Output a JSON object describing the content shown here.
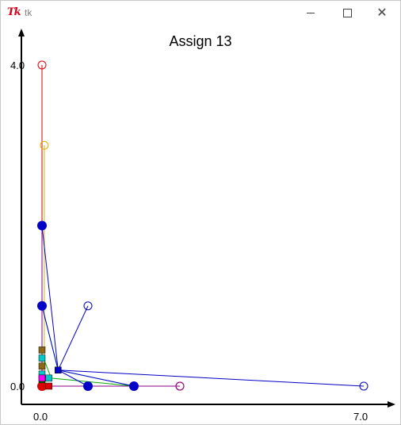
{
  "window": {
    "title": "tk",
    "app_icon": "tk-feather-icon"
  },
  "chart_data": {
    "type": "scatter",
    "title": "Assign 13",
    "xlim": [
      0.0,
      7.0
    ],
    "ylim": [
      0.0,
      4.0
    ],
    "x_ticks": [
      "0.0",
      "7.0"
    ],
    "y_ticks": [
      "4.0",
      "0.0"
    ],
    "series": [
      {
        "color": "#dc0000",
        "points": [
          [
            0.0,
            4.0
          ],
          [
            0.0,
            0.0
          ],
          [
            3.0,
            0.0
          ]
        ]
      },
      {
        "color": "#e0b000",
        "points": [
          [
            0.05,
            3.0
          ],
          [
            0.05,
            0.0
          ],
          [
            3.0,
            0.0
          ]
        ]
      },
      {
        "color": "#8b008b",
        "points": [
          [
            0.0,
            2.0
          ],
          [
            0.0,
            0.0
          ],
          [
            3.0,
            0.0
          ]
        ]
      },
      {
        "color": "#00b0b0",
        "points": [
          [
            0.0,
            1.0
          ],
          [
            0.35,
            0.2
          ],
          [
            2.0,
            0.0
          ]
        ]
      },
      {
        "color": "#00aa00",
        "points": [
          [
            0.0,
            0.4
          ],
          [
            0.2,
            0.1
          ],
          [
            2.0,
            0.0
          ]
        ]
      },
      {
        "color": "#0000c8",
        "points": [
          [
            0.0,
            2.0
          ],
          [
            0.35,
            0.2
          ],
          [
            7.0,
            0.0
          ]
        ]
      },
      {
        "color": "#0000c8",
        "points": [
          [
            1.0,
            1.0
          ],
          [
            0.35,
            0.2
          ],
          [
            1.0,
            0.0
          ]
        ]
      },
      {
        "color": "#0000c8",
        "points": [
          [
            0.0,
            1.0
          ],
          [
            0.35,
            0.2
          ],
          [
            2.0,
            0.0
          ]
        ]
      }
    ],
    "open_circles": [
      {
        "color": "#dc0000",
        "points": [
          [
            0.0,
            4.0
          ],
          [
            3.0,
            0.0
          ]
        ]
      },
      {
        "color": "#e0b000",
        "points": [
          [
            0.05,
            3.0
          ]
        ]
      },
      {
        "color": "#0000c8",
        "points": [
          [
            0.0,
            2.0
          ],
          [
            0.0,
            1.0
          ],
          [
            1.0,
            1.0
          ],
          [
            1.0,
            0.0
          ],
          [
            2.0,
            0.0
          ],
          [
            7.0,
            0.0
          ]
        ]
      },
      {
        "color": "#8b008b",
        "points": [
          [
            0.0,
            2.0
          ],
          [
            3.0,
            0.0
          ]
        ]
      }
    ],
    "filled_circles": [
      {
        "color": "#0000c8",
        "points": [
          [
            0.0,
            2.0
          ],
          [
            0.0,
            1.0
          ],
          [
            1.0,
            0.0
          ],
          [
            2.0,
            0.0
          ]
        ]
      },
      {
        "color": "#dc0000",
        "points": [
          [
            0.0,
            0.0
          ]
        ]
      }
    ],
    "squares": [
      {
        "color": "#8b6914",
        "points": [
          [
            0.0,
            0.45
          ]
        ]
      },
      {
        "color": "#00c8c8",
        "points": [
          [
            0.0,
            0.35
          ]
        ]
      },
      {
        "color": "#8b6914",
        "points": [
          [
            0.0,
            0.25
          ]
        ]
      },
      {
        "color": "#00c8c8",
        "points": [
          [
            0.0,
            0.15
          ]
        ]
      },
      {
        "color": "#006400",
        "points": [
          [
            0.0,
            0.08
          ]
        ]
      },
      {
        "color": "#ff00ff",
        "points": [
          [
            0.0,
            0.1
          ]
        ]
      },
      {
        "color": "#00c8c8",
        "points": [
          [
            0.15,
            0.1
          ]
        ]
      },
      {
        "color": "#0000c8",
        "points": [
          [
            0.35,
            0.2
          ]
        ]
      },
      {
        "color": "#dc0000",
        "points": [
          [
            0.15,
            0.0
          ]
        ]
      }
    ]
  }
}
